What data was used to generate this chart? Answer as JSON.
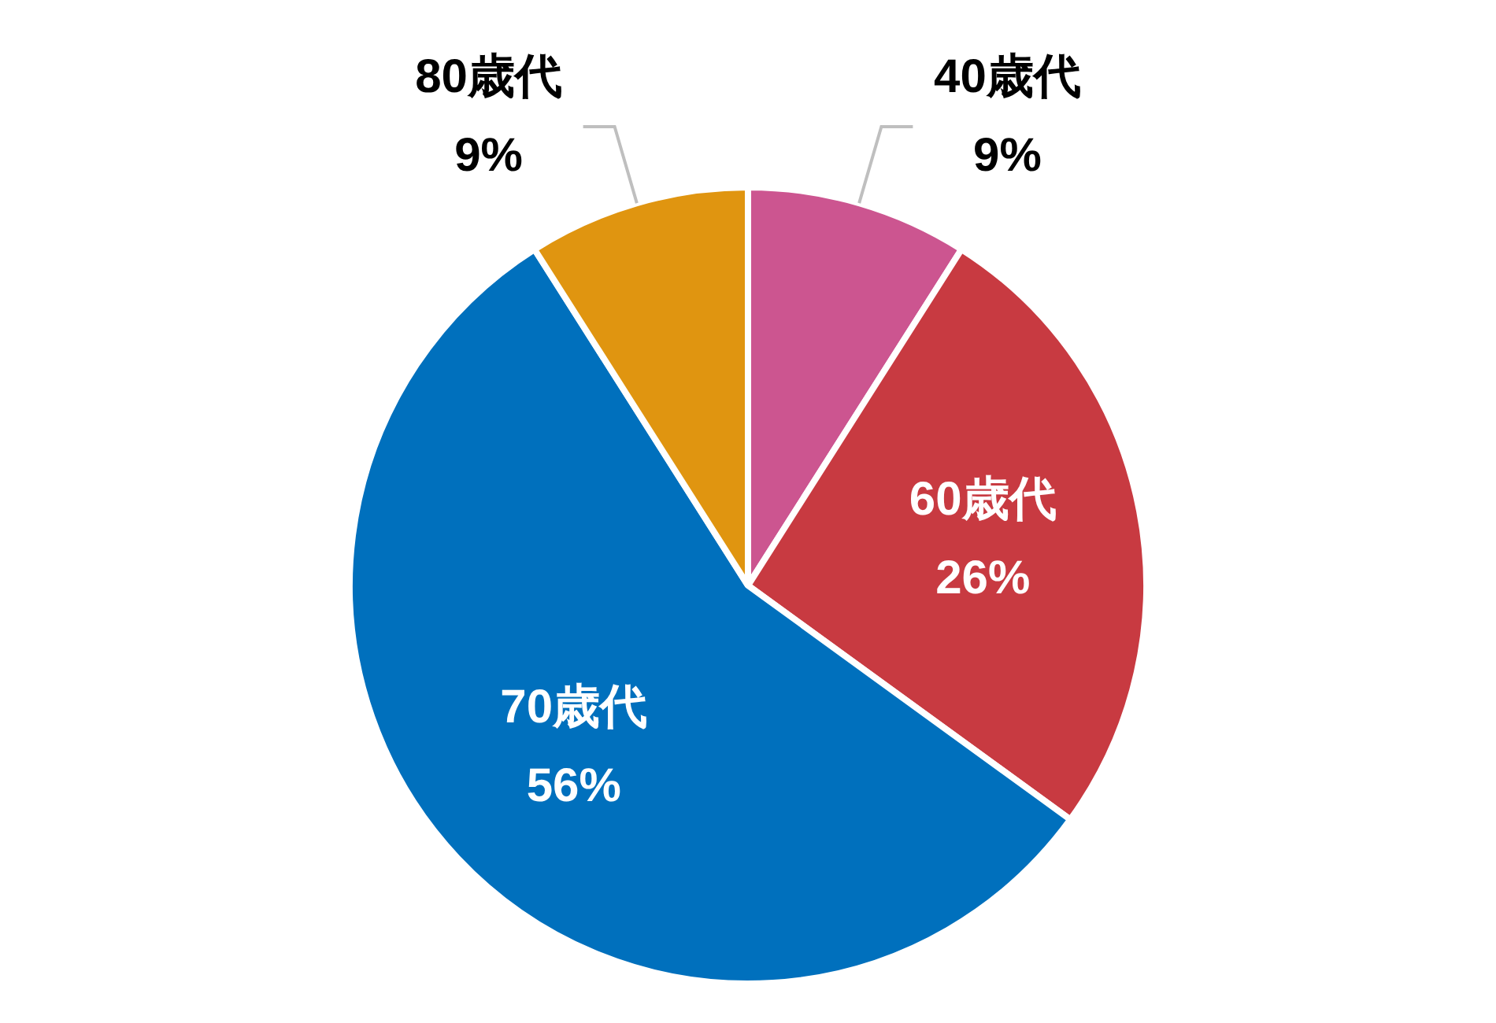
{
  "chart_data": {
    "type": "pie",
    "categories": [
      "40歳代",
      "60歳代",
      "70歳代",
      "80歳代"
    ],
    "values": [
      9,
      26,
      56,
      9
    ],
    "colors": [
      "#cc5590",
      "#c83a41",
      "#0070bd",
      "#e09510"
    ],
    "value_labels": [
      "9%",
      "26%",
      "56%",
      "9%"
    ],
    "legend": false
  }
}
